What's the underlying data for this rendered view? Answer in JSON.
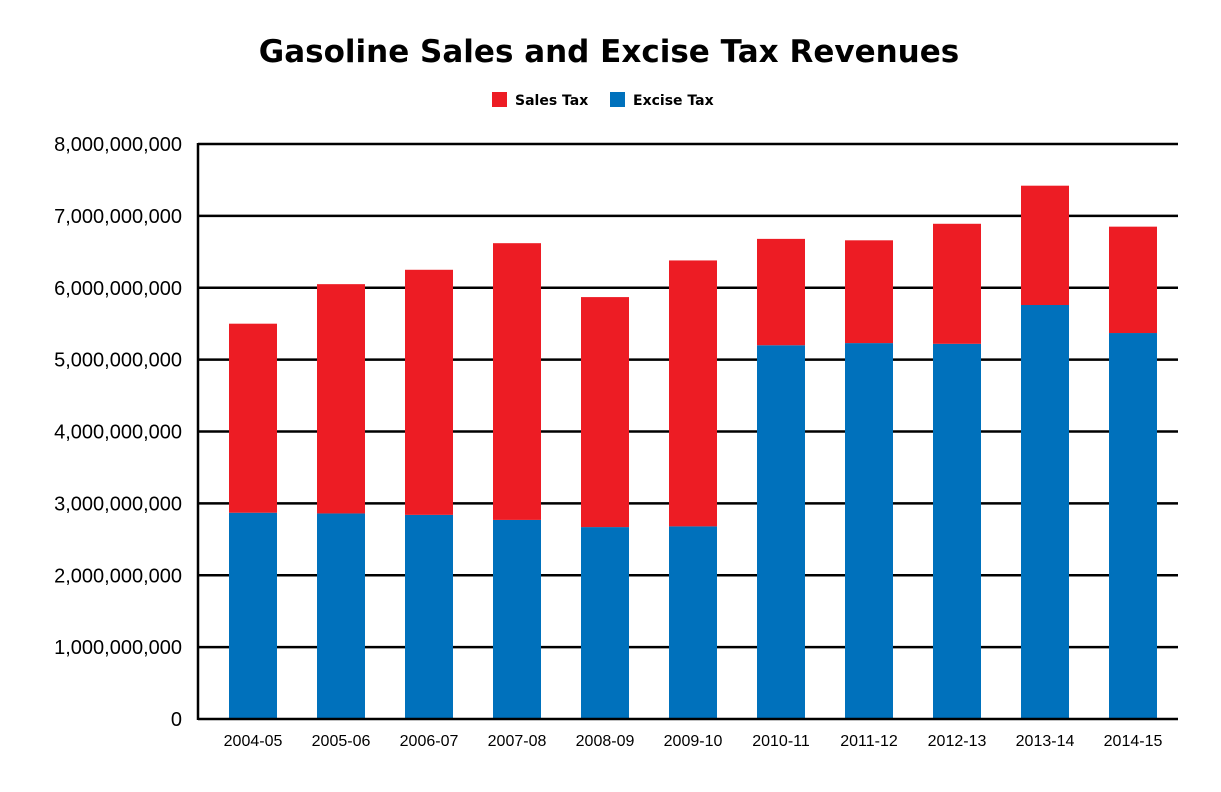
{
  "chart_data": {
    "type": "bar",
    "stacked": true,
    "title": "Gasoline Sales and Excise Tax Revenues",
    "xlabel": "",
    "ylabel": "",
    "ylim": [
      0,
      8000000000
    ],
    "yticks": [
      0,
      1000000000,
      2000000000,
      3000000000,
      4000000000,
      5000000000,
      6000000000,
      7000000000,
      8000000000
    ],
    "ytick_labels": [
      "0",
      "1,000,000,000",
      "2,000,000,000",
      "3,000,000,000",
      "4,000,000,000",
      "5,000,000,000",
      "6,000,000,000",
      "7,000,000,000",
      "8,000,000,000"
    ],
    "grid": true,
    "legend_position": "top-center",
    "categories": [
      "2004-05",
      "2005-06",
      "2006-07",
      "2007-08",
      "2008-09",
      "2009-10",
      "2010-11",
      "2011-12",
      "2012-13",
      "2013-14",
      "2014-15"
    ],
    "series": [
      {
        "name": "Excise Tax",
        "color": "#0071bc",
        "values": [
          2870000000,
          2860000000,
          2840000000,
          2770000000,
          2670000000,
          2680000000,
          5200000000,
          5230000000,
          5220000000,
          5760000000,
          5370000000
        ]
      },
      {
        "name": "Sales Tax",
        "color": "#ed1c24",
        "values": [
          2630000000,
          3190000000,
          3410000000,
          3850000000,
          3200000000,
          3700000000,
          1480000000,
          1430000000,
          1670000000,
          1660000000,
          1480000000
        ]
      }
    ],
    "legend_order": [
      "Sales Tax",
      "Excise Tax"
    ]
  }
}
